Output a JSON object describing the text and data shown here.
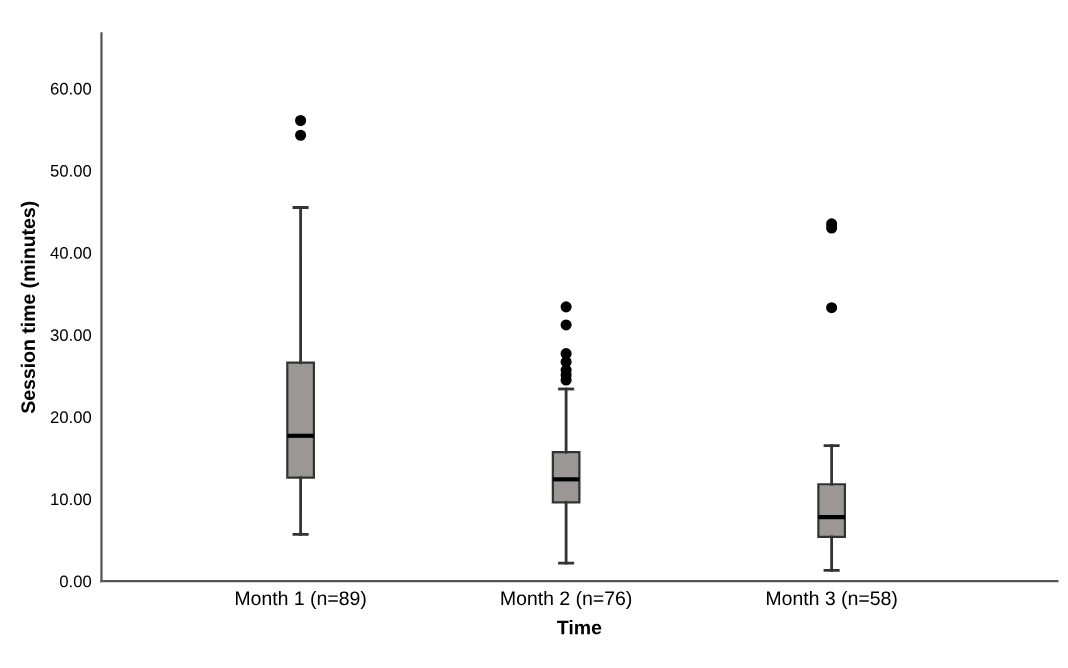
{
  "chart_data": {
    "type": "box",
    "xlabel": "Time",
    "ylabel": "Session time (minutes)",
    "categories": [
      "Month 1 (n=89)",
      "Month 2 (n=76)",
      "Month 3 (n=58)"
    ],
    "boxes": [
      {
        "low": 5.7,
        "q1": 12.6,
        "median": 17.7,
        "q3": 26.6,
        "high": 45.5,
        "outliers": [
          54.3,
          56.1
        ]
      },
      {
        "low": 2.2,
        "q1": 9.6,
        "median": 12.4,
        "q3": 15.7,
        "high": 23.4,
        "outliers": [
          24.5,
          25.1,
          25.7,
          26.7,
          27.7,
          31.2,
          33.4
        ]
      },
      {
        "low": 1.3,
        "q1": 5.4,
        "median": 7.8,
        "q3": 11.8,
        "high": 16.5,
        "outliers": [
          33.3,
          43.0,
          43.5
        ]
      }
    ],
    "color": "#9c9797",
    "ylim": [
      0,
      66.7
    ],
    "yticks": [
      {
        "value": 0,
        "label": "0.00"
      },
      {
        "value": 10,
        "label": "10.00"
      },
      {
        "value": 20,
        "label": "20.00"
      },
      {
        "value": 30,
        "label": "30.00"
      },
      {
        "value": 40,
        "label": "40.00"
      },
      {
        "value": 50,
        "label": "50.00"
      },
      {
        "value": 60,
        "label": "60.00"
      }
    ],
    "grid": false,
    "legend": false
  }
}
